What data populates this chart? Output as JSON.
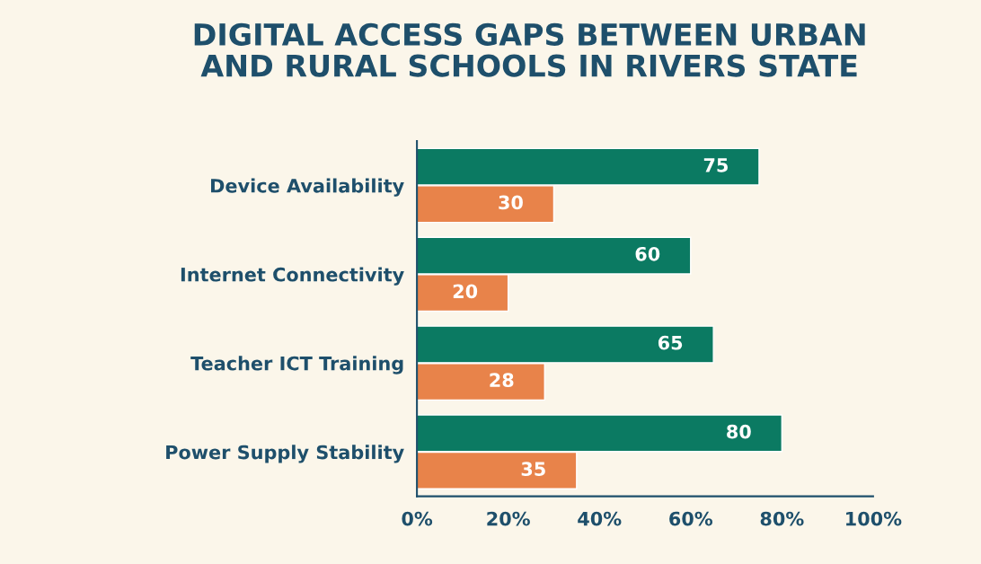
{
  "chart_data": {
    "type": "bar",
    "orientation": "horizontal",
    "title": "DIGITAL ACCESS GAPS BETWEEN URBAN\nAND RURAL SCHOOLS IN RIVERS STATE",
    "categories": [
      "Device Availability",
      "Internet Connectivity",
      "Teacher ICT Training",
      "Power Supply Stability"
    ],
    "series": [
      {
        "color": "#0b7a62",
        "values": [
          75,
          60,
          65,
          80
        ]
      },
      {
        "color": "#e8834a",
        "values": [
          30,
          20,
          28,
          35
        ]
      }
    ],
    "xlim": [
      0,
      100
    ],
    "xticks": [
      {
        "value": 0,
        "label": "0%"
      },
      {
        "value": 20,
        "label": "20%"
      },
      {
        "value": 40,
        "label": "40%"
      },
      {
        "value": 60,
        "label": "60%"
      },
      {
        "value": 80,
        "label": "80%"
      },
      {
        "value": 100,
        "label": "100%"
      }
    ],
    "data_labels": true,
    "grid": false
  }
}
